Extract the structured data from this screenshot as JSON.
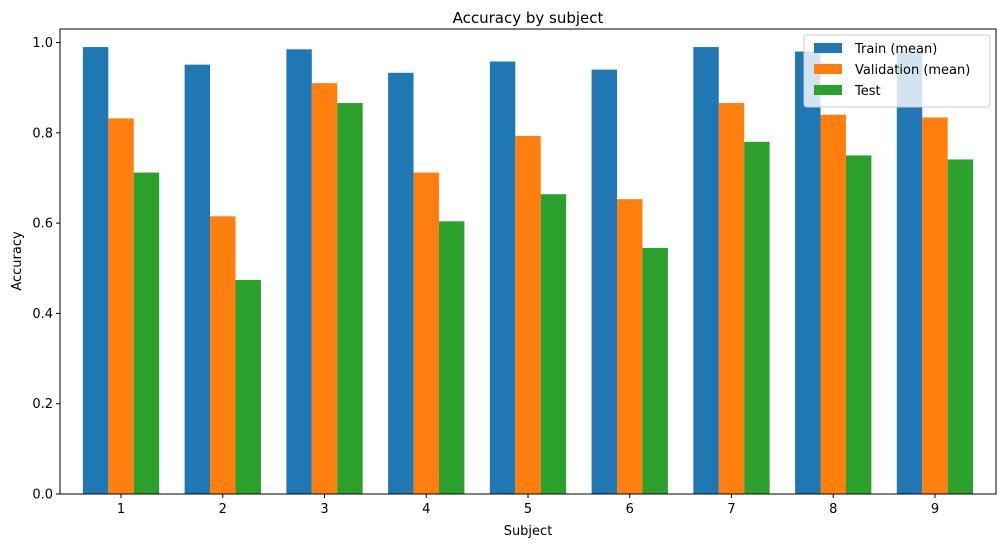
{
  "chart_data": {
    "type": "bar",
    "title": "Accuracy by subject",
    "xlabel": "Subject",
    "ylabel": "Accuracy",
    "categories": [
      "1",
      "2",
      "3",
      "4",
      "5",
      "6",
      "7",
      "8",
      "9"
    ],
    "ylim": [
      0,
      1.03
    ],
    "yticks": [
      "0.0",
      "0.2",
      "0.4",
      "0.6",
      "0.8",
      "1.0"
    ],
    "grid": false,
    "legend_position": "top-right",
    "series": [
      {
        "name": "Train (mean)",
        "color": "#1f77b4",
        "values": [
          0.99,
          0.951,
          0.985,
          0.933,
          0.958,
          0.94,
          0.99,
          0.98,
          0.98
        ]
      },
      {
        "name": "Validation (mean)",
        "color": "#ff7f0e",
        "values": [
          0.832,
          0.615,
          0.91,
          0.712,
          0.793,
          0.653,
          0.866,
          0.84,
          0.834
        ]
      },
      {
        "name": "Test",
        "color": "#2ca02c",
        "values": [
          0.712,
          0.474,
          0.866,
          0.604,
          0.664,
          0.545,
          0.78,
          0.75,
          0.741
        ]
      }
    ]
  }
}
